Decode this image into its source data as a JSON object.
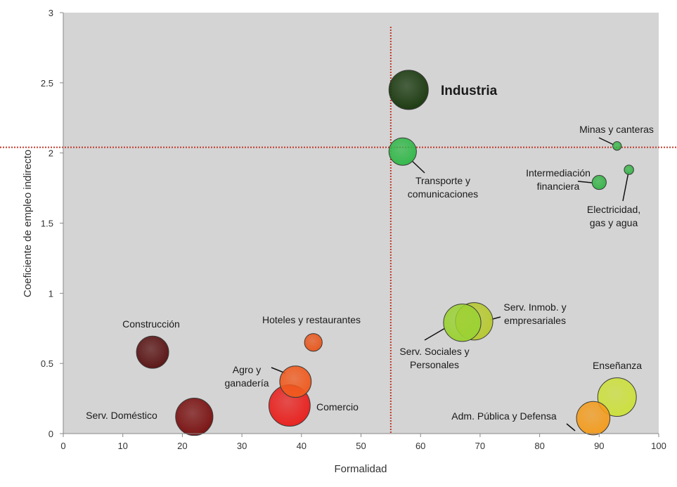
{
  "chart_data": {
    "type": "scatter",
    "title": "",
    "xlabel": "Formalidad",
    "ylabel": "Coeficiente de empleo indirecto",
    "xlim": [
      0,
      100
    ],
    "ylim": [
      0,
      3
    ],
    "x_ticks": [
      0,
      10,
      20,
      30,
      40,
      50,
      60,
      70,
      80,
      90,
      100
    ],
    "y_ticks": [
      0,
      0.5,
      1,
      1.5,
      2,
      2.5,
      3
    ],
    "y_tick_labels": [
      "0",
      "0.5",
      "1",
      "1.5",
      "2",
      "2.5",
      "3"
    ],
    "grid": false,
    "plot_background": "#d4d4d4",
    "reference_lines": {
      "x": 55,
      "y": 2.04,
      "color": "#c0392b",
      "style": "dotted"
    },
    "points": [
      {
        "label": "Industria",
        "x": 58,
        "y": 2.45,
        "size": 1.0,
        "color": "#1b3a10",
        "emphasis": true
      },
      {
        "label": "Transporte y\ncomunicaciones",
        "x": 57,
        "y": 2.01,
        "size": 0.7,
        "color": "#33b84a"
      },
      {
        "label": "Minas y canteras",
        "x": 93,
        "y": 2.05,
        "size": 0.22,
        "color": "#39b54a"
      },
      {
        "label": "Intermediación\nfinanciera",
        "x": 90,
        "y": 1.79,
        "size": 0.36,
        "color": "#39b54a"
      },
      {
        "label": "Electricidad,\ngas y agua",
        "x": 95,
        "y": 1.88,
        "size": 0.24,
        "color": "#39b54a"
      },
      {
        "label": "Serv. Inmob. y\nempresariales",
        "x": 69,
        "y": 0.8,
        "size": 0.95,
        "color": "#b7c932"
      },
      {
        "label": "Serv. Sociales y\nPersonales",
        "x": 67,
        "y": 0.79,
        "size": 0.95,
        "color": "#9bd233"
      },
      {
        "label": "Enseñanza",
        "x": 93,
        "y": 0.26,
        "size": 0.98,
        "color": "#cce03c"
      },
      {
        "label": "Adm. Pública y Defensa",
        "x": 89,
        "y": 0.11,
        "size": 0.85,
        "color": "#f39c1e"
      },
      {
        "label": "Construcción",
        "x": 15,
        "y": 0.58,
        "size": 0.82,
        "color": "#5a1414"
      },
      {
        "label": "Serv. Doméstico",
        "x": 22,
        "y": 0.12,
        "size": 0.95,
        "color": "#7a1212"
      },
      {
        "label": "Hoteles y restaurantes",
        "x": 42,
        "y": 0.65,
        "size": 0.45,
        "color": "#e8581e"
      },
      {
        "label": "Agro y\nganadería",
        "x": 39,
        "y": 0.37,
        "size": 0.8,
        "color": "#f05a1e"
      },
      {
        "label": "Comercio",
        "x": 38,
        "y": 0.2,
        "size": 1.05,
        "color": "#e8211e"
      }
    ]
  }
}
